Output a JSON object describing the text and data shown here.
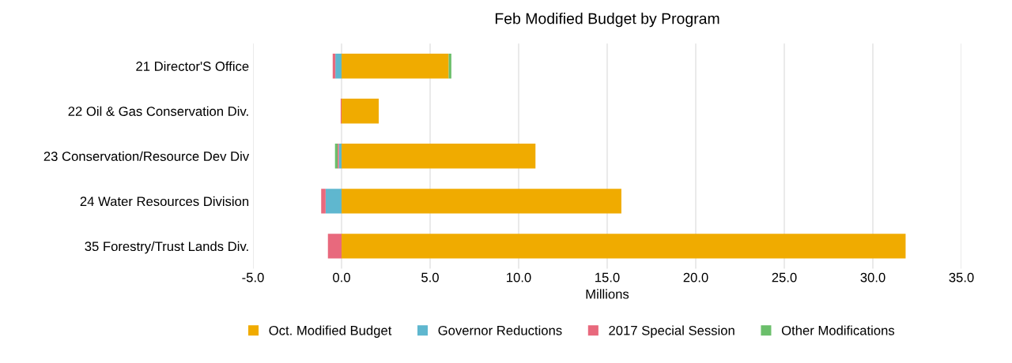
{
  "chart_data": {
    "type": "bar",
    "orientation": "horizontal",
    "stacked": true,
    "title": "Feb Modified Budget by Program",
    "xlabel": "Millions",
    "categories": [
      "21 Director'S Office",
      "22 Oil & Gas Conservation Div.",
      "23 Conservation/Resource Dev Div",
      "24 Water Resources Division",
      "35 Forestry/Trust Lands Div."
    ],
    "series": [
      {
        "name": "Oct. Modified Budget",
        "color": "#f0ab00",
        "values": [
          6.05,
          2.1,
          10.95,
          15.8,
          31.85
        ]
      },
      {
        "name": "Governor Reductions",
        "color": "#5fb7cf",
        "values": [
          -0.35,
          null,
          -0.15,
          -0.9,
          null
        ]
      },
      {
        "name": "2017 Special Session",
        "color": "#e8697d",
        "values": [
          -0.15,
          -0.05,
          -0.07,
          -0.25,
          -0.77
        ]
      },
      {
        "name": "Other Modifications",
        "color": "#6bbf6b",
        "values": [
          0.15,
          null,
          -0.15,
          null,
          null
        ]
      }
    ],
    "xlim": [
      -5,
      35
    ],
    "xticks": [
      {
        "value": -5,
        "label": "-5.0"
      },
      {
        "value": 0,
        "label": "0.0"
      },
      {
        "value": 5,
        "label": "5.0"
      },
      {
        "value": 10,
        "label": "10.0"
      },
      {
        "value": 15,
        "label": "15.0"
      },
      {
        "value": 20,
        "label": "20.0"
      },
      {
        "value": 25,
        "label": "25.0"
      },
      {
        "value": 30,
        "label": "30.0"
      },
      {
        "value": 35,
        "label": "35.0"
      }
    ],
    "grid": "x",
    "legend": "bottom"
  }
}
